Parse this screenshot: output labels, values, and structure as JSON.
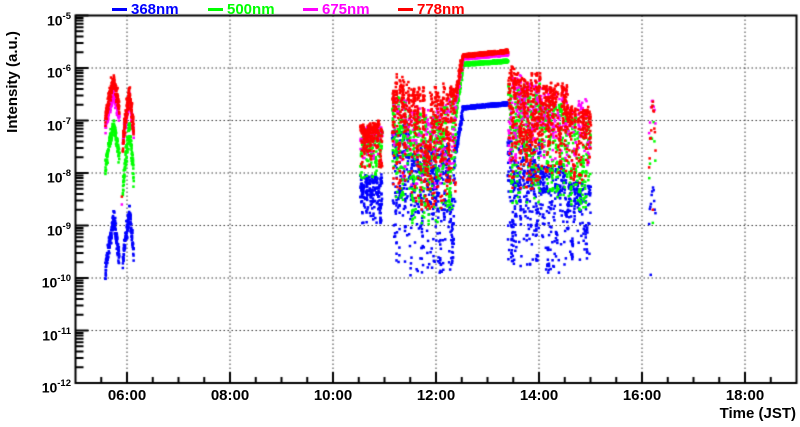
{
  "axes": {
    "x": {
      "title": "Time (JST)",
      "tick_labels": [
        "06:00",
        "08:00",
        "10:00",
        "12:00",
        "14:00",
        "16:00",
        "18:00"
      ],
      "tick_hours": [
        6,
        8,
        10,
        12,
        14,
        16,
        18
      ],
      "range_hours": [
        5,
        19
      ],
      "minor_tick_minutes": 30
    },
    "y": {
      "title": "Intensity (a.u.)",
      "scale": "log",
      "tick_exponents": [
        -5,
        -6,
        -7,
        -8,
        -9,
        -10,
        -11,
        -12
      ]
    }
  },
  "legend": {
    "items": [
      {
        "label": "368nm",
        "color": "#0000ff"
      },
      {
        "label": "500nm",
        "color": "#00ff00"
      },
      {
        "label": "675nm",
        "color": "#ff00ff"
      },
      {
        "label": "778nm",
        "color": "#ff0000"
      }
    ]
  },
  "chart_data": {
    "type": "scatter",
    "title": "",
    "xlabel": "Time (JST)",
    "ylabel": "Intensity (a.u.)",
    "x_axis": {
      "unit": "hour_of_day_JST",
      "range": [
        5,
        19
      ],
      "gridlines_at": [
        6,
        8,
        10,
        12,
        14,
        16,
        18
      ]
    },
    "y_axis": {
      "scale": "log",
      "unit": "a.u.",
      "range_log10": [
        -12,
        -5
      ],
      "gridlines_at_log10": [
        -6,
        -7,
        -8,
        -9,
        -10,
        -11
      ]
    },
    "grid": true,
    "legend_position": "top",
    "point_values_are": "log10 of intensity (a.u.); clusters give time window t0-t1 (hours JST) and log10 intensity envelope lo-hi",
    "series": [
      {
        "name": "368nm",
        "wavelength_nm": 368,
        "color": "#0000ff",
        "clusters": [
          {
            "t0": 5.58,
            "t1": 5.85,
            "shape": "arch",
            "lo": -9.95,
            "hi": -8.85,
            "d": 10
          },
          {
            "t0": 5.92,
            "t1": 6.13,
            "shape": "arch",
            "lo": -9.75,
            "hi": -8.75,
            "d": 10
          },
          {
            "t0": 10.53,
            "t1": 10.96,
            "shape": "spiky",
            "lo": -9.0,
            "hi": -8.0,
            "d": 1.0
          },
          {
            "t0": 11.15,
            "t1": 11.5,
            "shape": "spiky",
            "lo": -9.7,
            "hi": -7.05,
            "d": 1.0
          },
          {
            "t0": 11.5,
            "t1": 12.15,
            "shape": "spiky",
            "lo": -9.95,
            "hi": -7.45,
            "d": 1.0
          },
          {
            "t0": 12.15,
            "t1": 12.38,
            "shape": "spiky",
            "lo": -9.9,
            "hi": -7.35,
            "d": 1.0
          },
          {
            "t0": 12.38,
            "t1": 12.52,
            "shape": "rise",
            "lo": -7.6,
            "hi": -6.85,
            "d": 1
          },
          {
            "t0": 12.52,
            "t1": 13.4,
            "shape": "band",
            "lo": -6.76,
            "hi": -6.68,
            "th": 0.06
          },
          {
            "t0": 13.4,
            "t1": 14.02,
            "shape": "spiky",
            "lo": -9.8,
            "hi": -7.35,
            "d": 1.0
          },
          {
            "t0": 14.02,
            "t1": 14.55,
            "shape": "spiky",
            "lo": -9.9,
            "hi": -7.8,
            "d": 0.85
          },
          {
            "t0": 14.55,
            "t1": 15.0,
            "shape": "spiky",
            "lo": -9.7,
            "hi": -8.15,
            "d": 0.7
          },
          {
            "t0": 16.14,
            "t1": 16.26,
            "shape": "arch",
            "lo": -9.0,
            "hi": -8.2,
            "d": 1.5
          }
        ],
        "points": [
          [
            16.17,
            -9.94
          ]
        ]
      },
      {
        "name": "500nm",
        "wavelength_nm": 500,
        "color": "#00ff00",
        "clusters": [
          {
            "t0": 5.58,
            "t1": 5.85,
            "shape": "arch",
            "lo": -7.95,
            "hi": -7.05,
            "d": 10
          },
          {
            "t0": 5.92,
            "t1": 6.13,
            "shape": "arch",
            "lo": -8.35,
            "hi": -7.1,
            "d": 10
          },
          {
            "t0": 10.53,
            "t1": 10.96,
            "shape": "spiky",
            "lo": -8.1,
            "hi": -7.15,
            "d": 0.9
          },
          {
            "t0": 11.15,
            "t1": 11.5,
            "shape": "spiky",
            "lo": -8.6,
            "hi": -6.5,
            "d": 0.9
          },
          {
            "t0": 11.5,
            "t1": 12.15,
            "shape": "spiky",
            "lo": -9.0,
            "hi": -6.8,
            "d": 0.9
          },
          {
            "t0": 12.15,
            "t1": 12.38,
            "shape": "spiky",
            "lo": -8.7,
            "hi": -6.5,
            "d": 0.9
          },
          {
            "t0": 12.38,
            "t1": 12.52,
            "shape": "rise",
            "lo": -6.9,
            "hi": -6.0,
            "d": 1
          },
          {
            "t0": 12.52,
            "t1": 13.4,
            "shape": "band",
            "lo": -5.93,
            "hi": -5.87,
            "th": 0.06
          },
          {
            "t0": 13.4,
            "t1": 14.02,
            "shape": "spiky",
            "lo": -8.6,
            "hi": -6.25,
            "d": 0.9
          },
          {
            "t0": 14.02,
            "t1": 14.55,
            "shape": "spiky",
            "lo": -8.5,
            "hi": -6.6,
            "d": 0.8
          },
          {
            "t0": 14.55,
            "t1": 15.0,
            "shape": "spiky",
            "lo": -8.7,
            "hi": -6.9,
            "d": 0.7
          },
          {
            "t0": 16.14,
            "t1": 16.26,
            "shape": "arch",
            "lo": -8.1,
            "hi": -6.8,
            "d": 0.9
          }
        ],
        "points": [
          [
            16.21,
            -8.95
          ]
        ]
      },
      {
        "name": "675nm",
        "wavelength_nm": 675,
        "color": "#ff00ff",
        "clusters": [
          {
            "t0": 5.58,
            "t1": 5.85,
            "shape": "arch",
            "lo": -7.15,
            "hi": -6.5,
            "d": 8
          },
          {
            "t0": 5.92,
            "t1": 6.13,
            "shape": "arch",
            "lo": -7.45,
            "hi": -6.6,
            "d": 8
          },
          {
            "t0": 10.53,
            "t1": 10.96,
            "shape": "spiky",
            "lo": -7.8,
            "hi": -7.1,
            "d": 0.3
          },
          {
            "t0": 11.15,
            "t1": 11.5,
            "shape": "spiky",
            "lo": -8.1,
            "hi": -6.5,
            "d": 0.3
          },
          {
            "t0": 11.5,
            "t1": 12.15,
            "shape": "spiky",
            "lo": -8.3,
            "hi": -6.7,
            "d": 0.3
          },
          {
            "t0": 12.15,
            "t1": 12.38,
            "shape": "spiky",
            "lo": -8.2,
            "hi": -6.5,
            "d": 0.3
          },
          {
            "t0": 12.38,
            "t1": 12.52,
            "shape": "rise",
            "lo": -6.65,
            "hi": -5.85,
            "d": 0.8
          },
          {
            "t0": 12.52,
            "t1": 13.4,
            "shape": "band",
            "lo": -5.81,
            "hi": -5.73,
            "th": 0.06
          },
          {
            "t0": 13.4,
            "t1": 14.02,
            "shape": "spiky",
            "lo": -7.9,
            "hi": -6.1,
            "d": 0.5
          },
          {
            "t0": 14.02,
            "t1": 14.55,
            "shape": "spiky",
            "lo": -7.8,
            "hi": -6.35,
            "d": 0.35
          },
          {
            "t0": 14.55,
            "t1": 15.0,
            "shape": "spiky",
            "lo": -7.9,
            "hi": -6.55,
            "d": 0.3
          },
          {
            "t0": 16.14,
            "t1": 16.26,
            "shape": "arch",
            "lo": -7.2,
            "hi": -6.6,
            "d": 0.7
          }
        ],
        "points": [
          [
            5.9,
            -8.6
          ]
        ]
      },
      {
        "name": "778nm",
        "wavelength_nm": 778,
        "color": "#ff0000",
        "clusters": [
          {
            "t0": 5.58,
            "t1": 5.85,
            "shape": "arch",
            "lo": -7.0,
            "hi": -6.22,
            "d": 12
          },
          {
            "t0": 5.92,
            "t1": 6.13,
            "shape": "arch",
            "lo": -7.5,
            "hi": -6.45,
            "d": 12
          },
          {
            "t0": 10.53,
            "t1": 10.96,
            "shape": "spiky",
            "lo": -7.9,
            "hi": -7.0,
            "d": 1.1
          },
          {
            "t0": 11.15,
            "t1": 11.5,
            "shape": "spiky",
            "lo": -8.3,
            "hi": -6.1,
            "d": 1.1
          },
          {
            "t0": 11.5,
            "t1": 12.15,
            "shape": "spiky",
            "lo": -8.7,
            "hi": -6.35,
            "d": 1.1
          },
          {
            "t0": 12.15,
            "t1": 12.38,
            "shape": "spiky",
            "lo": -8.4,
            "hi": -6.15,
            "d": 1.1
          },
          {
            "t0": 12.38,
            "t1": 12.52,
            "shape": "rise",
            "lo": -6.5,
            "hi": -5.8,
            "d": 1
          },
          {
            "t0": 12.52,
            "t1": 13.4,
            "shape": "band",
            "lo": -5.77,
            "hi": -5.68,
            "th": 0.06
          },
          {
            "t0": 13.4,
            "t1": 14.02,
            "shape": "spiky",
            "lo": -8.3,
            "hi": -5.95,
            "d": 1.1
          },
          {
            "t0": 14.02,
            "t1": 14.55,
            "shape": "spiky",
            "lo": -8.0,
            "hi": -6.25,
            "d": 0.9
          },
          {
            "t0": 14.55,
            "t1": 15.0,
            "shape": "spiky",
            "lo": -8.2,
            "hi": -6.7,
            "d": 0.8
          },
          {
            "t0": 16.14,
            "t1": 16.26,
            "shape": "arch",
            "lo": -8.0,
            "hi": -6.5,
            "d": 1.8
          }
        ],
        "points": [
          [
            5.9,
            -8.45
          ],
          [
            16.21,
            -8.7
          ]
        ]
      }
    ]
  }
}
